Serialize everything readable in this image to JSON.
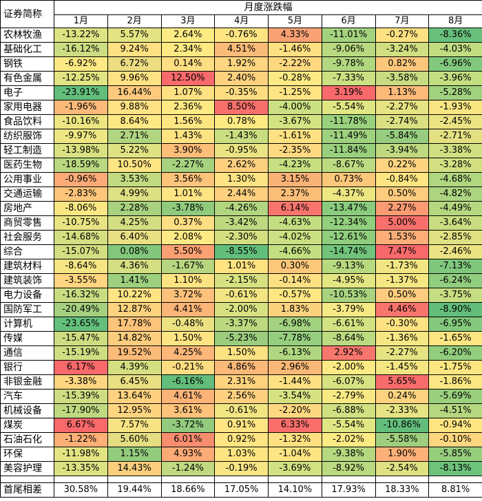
{
  "header": {
    "corner_label": "证券简称",
    "group_title": "月度涨跌幅",
    "months": [
      "1月",
      "2月",
      "3月",
      "4月",
      "5月",
      "6月",
      "7月",
      "8月"
    ]
  },
  "rows": [
    {
      "name": "农林牧渔",
      "values": [
        "-13.22%",
        "5.57%",
        "2.64%",
        "-0.76%",
        "4.33%",
        "-11.01%",
        "-0.27%",
        "-8.36%"
      ],
      "colors": [
        "#dde283",
        "#e3e383",
        "#fdeb84",
        "#fee582",
        "#f9a174",
        "#a4d37f",
        "#fee282",
        "#68c07c"
      ]
    },
    {
      "name": "基础化工",
      "values": [
        "-16.12%",
        "9.24%",
        "2.34%",
        "4.51%",
        "-1.46%",
        "-9.06%",
        "-3.24%",
        "-4.03%"
      ],
      "colors": [
        "#cbdc82",
        "#ffe083",
        "#fee983",
        "#fbbb79",
        "#fedf82",
        "#b8d980",
        "#d1de82",
        "#c1dc81"
      ]
    },
    {
      "name": "钢铁",
      "values": [
        "-6.92%",
        "6.72%",
        "0.14%",
        "1.92%",
        "-2.22%",
        "-9.78%",
        "0.82%",
        "-6.96%"
      ],
      "colors": [
        "#fce983",
        "#ecdd82",
        "#fede82",
        "#fed580",
        "#fed881",
        "#b1d780",
        "#fdc87c",
        "#83c97d"
      ]
    },
    {
      "name": "有色金属",
      "values": [
        "-12.25%",
        "9.96%",
        "12.50%",
        "2.40%",
        "-0.28%",
        "-7.33%",
        "-3.58%",
        "-3.96%"
      ],
      "colors": [
        "#e2e383",
        "#ffe283",
        "#f86a6b",
        "#fed17f",
        "#fdea84",
        "#cbe082",
        "#c8dc81",
        "#c3dd81"
      ]
    },
    {
      "name": "电子",
      "values": [
        "-23.91%",
        "16.44%",
        "1.07%",
        "-0.35%",
        "-1.25%",
        "3.19%",
        "1.13%",
        "-5.28%"
      ],
      "colors": [
        "#63be7b",
        "#fdca7d",
        "#fee182",
        "#fedd82",
        "#fee483",
        "#f8696b",
        "#fdba79",
        "#a2d27f"
      ]
    },
    {
      "name": "家用电器",
      "values": [
        "-1.96%",
        "9.88%",
        "2.36%",
        "8.50%",
        "-4.00%",
        "-5.54%",
        "-2.27%",
        "-1.93%"
      ],
      "colors": [
        "#fcba7a",
        "#ffe283",
        "#fee983",
        "#f8706c",
        "#cbe082",
        "#e0e683",
        "#e6e383",
        "#f9e683"
      ]
    },
    {
      "name": "食品饮料",
      "values": [
        "-10.16%",
        "8.64%",
        "1.56%",
        "0.78%",
        "-3.67%",
        "-11.78%",
        "-2.74%",
        "-2.45%"
      ],
      "colors": [
        "#ede683",
        "#fee884",
        "#fee683",
        "#fee983",
        "#d3e282",
        "#9ad17e",
        "#dae082",
        "#ebe283"
      ]
    },
    {
      "name": "纺织服饰",
      "values": [
        "-9.97%",
        "2.71%",
        "1.43%",
        "-1.43%",
        "-1.61%",
        "-11.49%",
        "-5.84%",
        "-2.71%"
      ],
      "colors": [
        "#eee683",
        "#b1d580",
        "#fee382",
        "#c9de81",
        "#fee182",
        "#9ed27e",
        "#97cd7e",
        "#e3e083"
      ]
    },
    {
      "name": "轻工制造",
      "values": [
        "-13.98%",
        "5.22%",
        "3.90%",
        "-0.95%",
        "-2.35%",
        "-11.84%",
        "-3.94%",
        "-3.38%"
      ],
      "colors": [
        "#d9e182",
        "#dfe283",
        "#fdbe7a",
        "#eae383",
        "#fed981",
        "#99d07e",
        "#bed980",
        "#d0df82"
      ]
    },
    {
      "name": "医药生物",
      "values": [
        "-18.59%",
        "10.50%",
        "-2.27%",
        "2.62%",
        "-4.23%",
        "-8.67%",
        "0.22%",
        "-3.28%"
      ],
      "colors": [
        "#bad880",
        "#fee583",
        "#a7d27f",
        "#fdd07f",
        "#c7df81",
        "#bcdb81",
        "#fdd480",
        "#d3e082"
      ]
    },
    {
      "name": "公用事业",
      "values": [
        "-0.96%",
        "3.53%",
        "3.56%",
        "1.30%",
        "3.15%",
        "0.73%",
        "-0.84%",
        "-4.68%"
      ],
      "colors": [
        "#fcaa77",
        "#c2da81",
        "#fdc47c",
        "#fde383",
        "#f9b276",
        "#fbc77b",
        "#fee582",
        "#b1d680"
      ]
    },
    {
      "name": "交通运输",
      "values": [
        "-2.83%",
        "4.99%",
        "1.01%",
        "2.44%",
        "2.37%",
        "-4.37%",
        "0.50%",
        "-4.82%"
      ],
      "colors": [
        "#fdc57b",
        "#dde083",
        "#fee483",
        "#fed07f",
        "#fbbe79",
        "#ece783",
        "#fdcc7e",
        "#add480"
      ]
    },
    {
      "name": "房地产",
      "values": [
        "-8.06%",
        "2.28%",
        "-3.78%",
        "-4.26%",
        "6.14%",
        "-13.47%",
        "2.27%",
        "-4.49%"
      ],
      "colors": [
        "#f8e783",
        "#a8d27f",
        "#90cb7d",
        "#b2d680",
        "#f8756d",
        "#89cc7d",
        "#fb9b73",
        "#b5d780"
      ]
    },
    {
      "name": "商贸零售",
      "values": [
        "-10.75%",
        "4.25%",
        "0.37%",
        "-3.42%",
        "-4.63%",
        "-12.34%",
        "5.00%",
        "-3.64%"
      ],
      "colors": [
        "#e9e483",
        "#d2de82",
        "#fede82",
        "#bcd980",
        "#c3de81",
        "#92cf7e",
        "#f8706c",
        "#c9dd81"
      ]
    },
    {
      "name": "社会服务",
      "values": [
        "-14.68%",
        "6.40%",
        "2.08%",
        "-2.30%",
        "-4.02%",
        "-12.61%",
        "1.53%",
        "-2.85%"
      ],
      "colors": [
        "#d5df82",
        "#e9df83",
        "#feea84",
        "#d4df82",
        "#cbe082",
        "#90ce7e",
        "#fdae78",
        "#dfe183"
      ]
    },
    {
      "name": "综合",
      "values": [
        "-15.07%",
        "0.08%",
        "5.50%",
        "-8.55%",
        "-4.66%",
        "-14.74%",
        "7.47%",
        "-2.46%"
      ],
      "colors": [
        "#d2de82",
        "#83c77c",
        "#faa174",
        "#63be7b",
        "#c2de81",
        "#72c47c",
        "#f8696b",
        "#eae283"
      ]
    },
    {
      "name": "建筑材料",
      "values": [
        "-8.64%",
        "4.36%",
        "-1.67%",
        "1.01%",
        "0.30%",
        "-9.13%",
        "-1.73%",
        "-7.13%"
      ],
      "colors": [
        "#f5e683",
        "#d4de82",
        "#b8d680",
        "#fee382",
        "#fbc77b",
        "#b7d980",
        "#f1e683",
        "#80c87d"
      ]
    },
    {
      "name": "建筑装饰",
      "values": [
        "-3.55%",
        "1.41%",
        "1.10%",
        "-2.15%",
        "-0.14%",
        "-4.95%",
        "-1.37%",
        "-6.24%"
      ],
      "colors": [
        "#fed580",
        "#9ccf7e",
        "#fee382",
        "#d7e182",
        "#fde082",
        "#e4e583",
        "#f5e783",
        "#91cd7e"
      ]
    },
    {
      "name": "电力设备",
      "values": [
        "-16.32%",
        "10.22%",
        "3.72%",
        "-0.61%",
        "-0.57%",
        "-10.53%",
        "0.50%",
        "-3.75%"
      ],
      "colors": [
        "#c9dc82",
        "#ffe483",
        "#fdc17b",
        "#f1e583",
        "#fee683",
        "#a9d47f",
        "#fdcc7e",
        "#c7dd81"
      ]
    },
    {
      "name": "国防军工",
      "values": [
        "-20.49%",
        "12.87%",
        "4.41%",
        "-2.00%",
        "1.83%",
        "-3.79%",
        "4.46%",
        "-8.90%"
      ],
      "colors": [
        "#a4d07f",
        "#fdd37f",
        "#fcb578",
        "#d8e182",
        "#fbd37f",
        "#f4e984",
        "#f8756d",
        "#63be7b"
      ]
    },
    {
      "name": "计算机",
      "values": [
        "-23.65%",
        "17.78%",
        "-0.48%",
        "-3.37%",
        "-6.98%",
        "-6.61%",
        "-0.30%",
        "-6.95%"
      ],
      "colors": [
        "#65bf7c",
        "#fcc37b",
        "#ebe183",
        "#bcd980",
        "#a2d27f",
        "#d3e282",
        "#fee282",
        "#84c97d"
      ]
    },
    {
      "name": "传媒",
      "values": [
        "-15.47%",
        "14.82%",
        "1.50%",
        "-5.23%",
        "-7.78%",
        "-8.64%",
        "-1.36%",
        "-1.65%"
      ],
      "colors": [
        "#cfdd82",
        "#fccd7e",
        "#fee583",
        "#9ccd7e",
        "#94ce7e",
        "#bcdb81",
        "#f5e783",
        "#fde582"
      ]
    },
    {
      "name": "通信",
      "values": [
        "-15.19%",
        "19.52%",
        "4.25%",
        "1.50%",
        "-6.13%",
        "2.92%",
        "-2.27%",
        "-6.20%"
      ],
      "colors": [
        "#d1dd82",
        "#fbbb79",
        "#fcb779",
        "#fde283",
        "#b0d780",
        "#f8776d",
        "#e6e383",
        "#92ce7e"
      ]
    },
    {
      "name": "银行",
      "values": [
        "6.17%",
        "4.39%",
        "-0.21%",
        "4.86%",
        "2.96%",
        "-2.00%",
        "-1.45%",
        "-1.75%"
      ],
      "colors": [
        "#f8696b",
        "#d5df82",
        "#fedd82",
        "#fbb979",
        "#f9b877",
        "#fcea84",
        "#f4e683",
        "#fce682"
      ]
    },
    {
      "name": "非银金融",
      "values": [
        "-3.38%",
        "6.45%",
        "-6.16%",
        "2.31%",
        "-1.44%",
        "-6.07%",
        "5.65%",
        "-1.86%"
      ],
      "colors": [
        "#fed580",
        "#e9df83",
        "#63be7b",
        "#fed27f",
        "#fedf82",
        "#d7e282",
        "#f86d6b",
        "#fae683"
      ]
    },
    {
      "name": "汽车",
      "values": [
        "-15.39%",
        "13.64%",
        "4.61%",
        "2.56%",
        "-3.54%",
        "-2.79%",
        "0.24%",
        "-5.69%"
      ],
      "colors": [
        "#cfdd82",
        "#fdd17f",
        "#fcb378",
        "#fed07f",
        "#d6e282",
        "#f6e984",
        "#fdd380",
        "#9ad07e"
      ]
    },
    {
      "name": "机械设备",
      "values": [
        "-17.90%",
        "12.95%",
        "3.61%",
        "-0.61%",
        "-2.20%",
        "-6.88%",
        "-2.33%",
        "-4.51%"
      ],
      "colors": [
        "#bfd981",
        "#fdd480",
        "#fdc37b",
        "#f1e583",
        "#fed881",
        "#d0e182",
        "#e5e383",
        "#b5d780"
      ]
    },
    {
      "name": "煤炭",
      "values": [
        "6.67%",
        "7.57%",
        "-3.72%",
        "0.91%",
        "6.33%",
        "-5.54%",
        "-10.86%",
        "-0.94%"
      ],
      "colors": [
        "#f8696b",
        "#f8e384",
        "#92cb7e",
        "#fee482",
        "#f86f6c",
        "#e0e683",
        "#63be7b",
        "#fee582"
      ]
    },
    {
      "name": "石油石化",
      "values": [
        "-1.22%",
        "5.60%",
        "6.01%",
        "0.92%",
        "-1.32%",
        "-2.02%",
        "-5.58%",
        "-0.10%"
      ],
      "colors": [
        "#fcb077",
        "#e4dd82",
        "#f98d70",
        "#fee482",
        "#fee082",
        "#fcea84",
        "#9fcf7e",
        "#fdd780"
      ]
    },
    {
      "name": "环保",
      "values": [
        "-11.98%",
        "1.15%",
        "4.93%",
        "1.03%",
        "-1.04%",
        "-9.38%",
        "1.90%",
        "-5.85%"
      ],
      "colors": [
        "#e3e483",
        "#93cc7d",
        "#fcab77",
        "#fee582",
        "#fee583",
        "#b5d880",
        "#fdb178",
        "#97ce7e"
      ]
    },
    {
      "name": "美容护理",
      "values": [
        "-13.35%",
        "14.43%",
        "-1.24%",
        "-0.19%",
        "-3.69%",
        "-8.92%",
        "-2.54%",
        "-8.13%"
      ],
      "colors": [
        "#dce283",
        "#fccf7e",
        "#c1d981",
        "#f8e584",
        "#d2e282",
        "#b9da80",
        "#dfe183",
        "#6ec37c"
      ]
    }
  ],
  "footer": {
    "label": "首尾相差",
    "values": [
      "30.58%",
      "19.44%",
      "18.66%",
      "17.05%",
      "14.10%",
      "17.93%",
      "18.33%",
      "8.81%"
    ]
  }
}
